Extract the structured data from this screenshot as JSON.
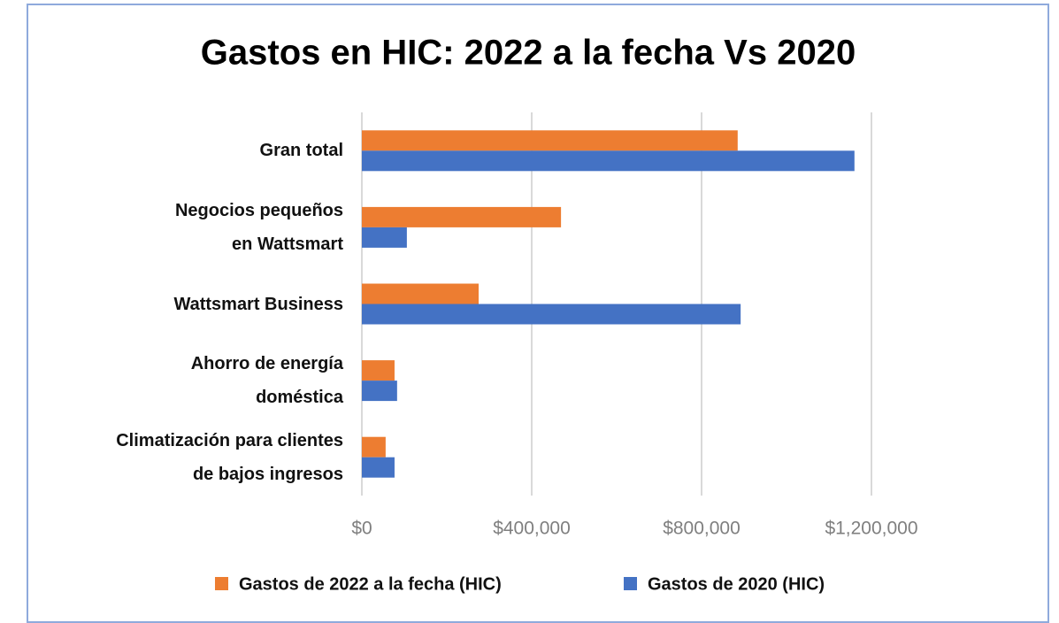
{
  "chart_data": {
    "type": "barh",
    "title": "Gastos en HIC: 2022 a la fecha Vs 2020",
    "categories": [
      "Gran total",
      "Negocios pequeños\nen Wattsmart",
      "Wattsmart Business",
      "Ahorro de energía\ndoméstica",
      "Climatización para clientes\nde bajos ingresos"
    ],
    "series": [
      {
        "name": "Gastos de 2022 a la fecha (HIC)",
        "color": "#ed7d31",
        "values": [
          885000,
          469000,
          275000,
          77000,
          56000
        ]
      },
      {
        "name": "Gastos de 2020 (HIC)",
        "color": "#4472c4",
        "values": [
          1160000,
          106000,
          892000,
          83000,
          77000
        ]
      }
    ],
    "xlim": [
      0,
      1200000
    ],
    "xticks": [
      {
        "value": 0,
        "label": "$0"
      },
      {
        "value": 400000,
        "label": "$400,000"
      },
      {
        "value": 800000,
        "label": "$800,000"
      },
      {
        "value": 1200000,
        "label": "$1,200,000"
      }
    ],
    "grid": true,
    "legend": "bottom"
  }
}
